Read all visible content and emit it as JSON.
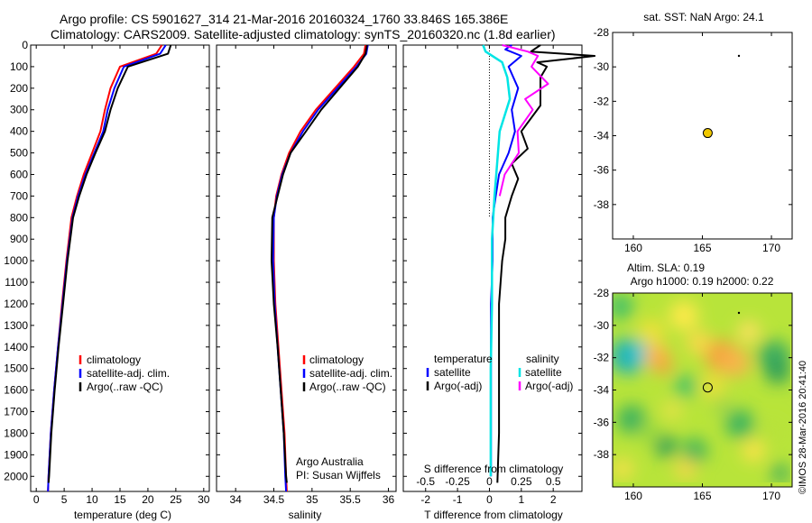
{
  "header": {
    "line1": "Argo profile: CS 5901627_314 21-Mar-2016 20160324_1760 33.846S 165.386E",
    "line2": "Climatology: CARS2009. Satellite-adjusted climatology: synTS_20160320.nc (1.8d earlier)"
  },
  "colors": {
    "clim": "#ff0000",
    "sat": "#0000ff",
    "argo": "#000000",
    "sal_sat": "#00e5e5",
    "sal_argo": "#ff00ff",
    "marker": "#f0c800"
  },
  "panels": {
    "temp": {
      "xlabel": "temperature (deg C)",
      "xticks": [
        0,
        5,
        10,
        15,
        20,
        25,
        30
      ],
      "xlim": [
        -1,
        31
      ],
      "legend": [
        "climatology",
        "satellite-adj. clim.",
        "Argo(..raw -QC)"
      ]
    },
    "sal": {
      "xlabel": "salinity",
      "xticks": [
        34,
        34.5,
        35,
        35.5,
        36
      ],
      "xlim": [
        33.75,
        36.1
      ],
      "legend": [
        "climatology",
        "satellite-adj. clim.",
        "Argo(..raw -QC)"
      ],
      "credit1": "Argo Australia",
      "credit2": "PI: Susan Wijffels"
    },
    "diff": {
      "xlabel": "T difference from climatology",
      "xlabel_top": "S difference from climatology",
      "xticks_t": [
        -2,
        -1,
        0,
        1,
        2
      ],
      "xticks_s": [
        "-0.5",
        "-0.25",
        "0",
        "0.25",
        "0.5"
      ],
      "xlim": [
        -2.7,
        2.9
      ],
      "legend_t_title": "temperature",
      "legend_s_title": "salinity",
      "legend_t": [
        "satellite",
        "Argo(-adj)"
      ],
      "legend_s": [
        "satellite",
        "Argo(-adj)"
      ]
    },
    "sst": {
      "title": "sat. SST: NaN Argo: 24.1",
      "xticks": [
        160,
        165,
        170
      ],
      "yticks": [
        -28,
        -30,
        -32,
        -34,
        -36,
        -38
      ],
      "xlim": [
        158.5,
        171.5
      ],
      "ylim": [
        -40,
        -28
      ]
    },
    "sla": {
      "title1": "Altim. SLA: 0.19",
      "title2": "Argo h1000: 0.19 h2000: 0.22",
      "xticks": [
        160,
        165,
        170
      ],
      "yticks": [
        -28,
        -30,
        -32,
        -34,
        -36,
        -38
      ],
      "xlim": [
        158.5,
        171.5
      ],
      "ylim": [
        -40,
        -28
      ],
      "credit": "©IMOS 28-Mar-2016 20:41:40"
    }
  },
  "depth_axis": {
    "ticks": [
      0,
      100,
      200,
      300,
      400,
      500,
      600,
      700,
      800,
      900,
      1000,
      1100,
      1200,
      1300,
      1400,
      1500,
      1600,
      1700,
      1800,
      1900,
      2000
    ],
    "range": [
      0,
      2070
    ]
  },
  "chart_data": [
    {
      "type": "line",
      "panel": "temperature",
      "x_unit": "deg C",
      "y_unit": "depth (dbar)",
      "series": [
        {
          "name": "climatology",
          "x": [
            22.5,
            21.5,
            15.0,
            13.3,
            12.3,
            11.5,
            10.0,
            8.5,
            7.3,
            6.3,
            5.4,
            4.6,
            3.9,
            3.2,
            2.6,
            2.2,
            2.1
          ],
          "y": [
            0,
            40,
            100,
            200,
            300,
            400,
            500,
            600,
            700,
            800,
            1000,
            1200,
            1400,
            1600,
            1800,
            2000,
            2070
          ]
        },
        {
          "name": "satellite-adj. clim.",
          "x": [
            23.2,
            22.2,
            15.7,
            14.0,
            12.8,
            12.0,
            10.4,
            8.8,
            7.5,
            6.5,
            5.5,
            4.7,
            3.9,
            3.2,
            2.6,
            2.2,
            2.1
          ],
          "y": [
            0,
            40,
            100,
            200,
            300,
            400,
            500,
            600,
            700,
            800,
            1000,
            1200,
            1400,
            1600,
            1800,
            2000,
            2070
          ]
        },
        {
          "name": "Argo(..raw -QC)",
          "x": [
            24.1,
            23.6,
            16.4,
            14.6,
            13.3,
            12.3,
            10.6,
            9.0,
            7.7,
            6.6,
            5.6,
            4.8,
            4.0,
            3.3,
            2.7,
            2.3,
            2.2
          ],
          "y": [
            0,
            40,
            100,
            200,
            300,
            400,
            500,
            600,
            700,
            800,
            1000,
            1200,
            1400,
            1600,
            1800,
            2000,
            2030
          ]
        }
      ]
    },
    {
      "type": "line",
      "panel": "salinity",
      "x_unit": "psu",
      "y_unit": "depth (dbar)",
      "series": [
        {
          "name": "climatology",
          "x": [
            35.7,
            35.68,
            35.55,
            35.3,
            35.05,
            34.85,
            34.7,
            34.6,
            34.53,
            34.5,
            34.5,
            34.52,
            34.56,
            34.6,
            34.64,
            34.66,
            34.67
          ],
          "y": [
            0,
            40,
            100,
            200,
            300,
            400,
            500,
            600,
            700,
            800,
            1000,
            1200,
            1400,
            1600,
            1800,
            2000,
            2070
          ]
        },
        {
          "name": "satellite-adj. clim.",
          "x": [
            35.73,
            35.71,
            35.58,
            35.33,
            35.08,
            34.88,
            34.72,
            34.61,
            34.54,
            34.5,
            34.49,
            34.51,
            34.55,
            34.59,
            34.63,
            34.65,
            34.66
          ],
          "y": [
            0,
            40,
            100,
            200,
            300,
            400,
            500,
            600,
            700,
            800,
            1000,
            1200,
            1400,
            1600,
            1800,
            2000,
            2070
          ]
        },
        {
          "name": "Argo(..raw -QC)",
          "x": [
            35.72,
            35.7,
            35.6,
            35.36,
            35.12,
            34.92,
            34.72,
            34.62,
            34.55,
            34.48,
            34.47,
            34.5,
            34.55,
            34.59,
            34.63,
            34.66,
            34.67
          ],
          "y": [
            0,
            40,
            100,
            200,
            300,
            400,
            500,
            600,
            700,
            800,
            1000,
            1200,
            1400,
            1600,
            1800,
            2000,
            2030
          ]
        }
      ]
    },
    {
      "type": "line",
      "panel": "difference",
      "y_unit": "depth (dbar)",
      "series": [
        {
          "name": "temperature satellite",
          "x": [
            0.7,
            0.5,
            1.0,
            0.6,
            0.9,
            0.7,
            0.8,
            0.6,
            0.3,
            0.2,
            0.1,
            0.1,
            0.05,
            0.05,
            0.05,
            0.05
          ],
          "y": [
            0,
            20,
            50,
            100,
            200,
            300,
            400,
            500,
            600,
            700,
            800,
            1000,
            1200,
            1500,
            1800,
            2000
          ]
        },
        {
          "name": "temperature Argo(-adj)",
          "x": [
            1.6,
            1.3,
            3.3,
            1.5,
            1.8,
            1.6,
            1.6,
            1.0,
            1.2,
            0.7,
            0.9,
            0.7,
            0.5,
            0.5,
            0.4,
            0.3,
            0.3,
            0.3,
            0.3,
            0.25
          ],
          "y": [
            0,
            30,
            50,
            80,
            100,
            150,
            280,
            400,
            480,
            550,
            620,
            700,
            800,
            900,
            1000,
            1200,
            1400,
            1600,
            1800,
            2030
          ]
        },
        {
          "name": "salinity satellite",
          "x": [
            -0.05,
            -0.03,
            0.1,
            0.14,
            0.16,
            0.08,
            0.06,
            0.04,
            0.02,
            0.02,
            0.01,
            0.01,
            0.01
          ],
          "y": [
            0,
            30,
            80,
            150,
            250,
            400,
            550,
            700,
            900,
            1200,
            1500,
            1800,
            2000
          ]
        },
        {
          "name": "salinity Argo(-adj)",
          "x": [
            0.1,
            0.3,
            0.38,
            0.33,
            0.46,
            0.28,
            0.34,
            0.22,
            0.23,
            0.12,
            0.08
          ],
          "y": [
            0,
            30,
            50,
            100,
            180,
            250,
            300,
            400,
            500,
            600,
            700
          ]
        }
      ]
    },
    {
      "type": "scatter",
      "panel": "sat. SST map",
      "points": [
        {
          "lon": 165.386,
          "lat": -33.846
        }
      ]
    },
    {
      "type": "heatmap",
      "panel": "Altim. SLA map",
      "points": [
        {
          "lon": 165.386,
          "lat": -33.846
        }
      ]
    }
  ]
}
